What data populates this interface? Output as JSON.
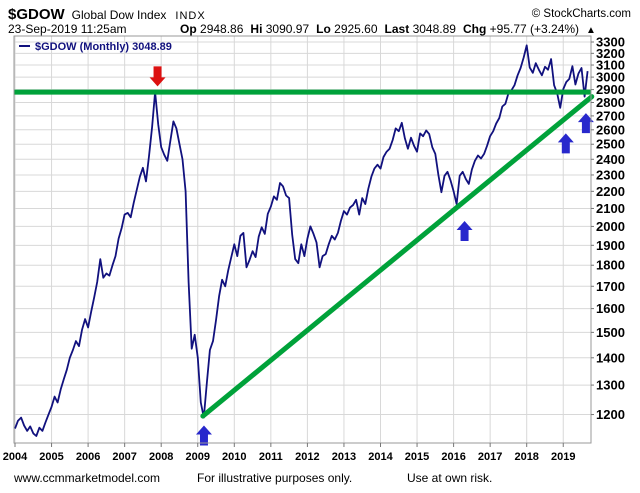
{
  "header": {
    "symbol": "$GDOW",
    "name": "Global Dow Index",
    "exchange": "INDX",
    "copyright": "© StockCharts.com",
    "datetime": "23-Sep-2019 11:25am",
    "quote": {
      "open_label": "Op",
      "open": "2948.86",
      "high_label": "Hi",
      "high": "3090.97",
      "low_label": "Lo",
      "low": "2925.60",
      "last_label": "Last",
      "last": "3048.89",
      "chg_label": "Chg",
      "chg": "+95.77 (+3.24%)",
      "direction": "▲"
    }
  },
  "legend": {
    "label": "$GDOW (Monthly) 3048.89",
    "color": "#11117e"
  },
  "footer": {
    "left": "www.ccmmarketmodel.com",
    "center": "For illustrative purposes only.",
    "right": "Use at own risk."
  },
  "chart_data": {
    "type": "line",
    "title": "$GDOW Global Dow Index monthly line chart",
    "frequency": "monthly",
    "start": "2004-01",
    "end": "2019-09",
    "log_scale": true,
    "grid": true,
    "x_range": [
      2004.0,
      2019.78
    ],
    "y_range": [
      1110,
      3375
    ],
    "x_ticks": [
      2004,
      2005,
      2006,
      2007,
      2008,
      2009,
      2010,
      2011,
      2012,
      2013,
      2014,
      2015,
      2016,
      2017,
      2018,
      2019
    ],
    "y_ticks": [
      1200,
      1300,
      1400,
      1500,
      1600,
      1700,
      1800,
      1900,
      2000,
      2100,
      2200,
      2300,
      2400,
      2500,
      2600,
      2700,
      2800,
      2900,
      3000,
      3100,
      3200,
      3300
    ],
    "line_color": "#11117e",
    "series": [
      {
        "name": "$GDOW (Monthly)",
        "values": [
          1155,
          1180,
          1190,
          1165,
          1148,
          1162,
          1140,
          1132,
          1158,
          1148,
          1175,
          1200,
          1225,
          1260,
          1240,
          1285,
          1320,
          1355,
          1400,
          1430,
          1465,
          1445,
          1510,
          1555,
          1520,
          1585,
          1650,
          1720,
          1830,
          1740,
          1760,
          1750,
          1800,
          1845,
          1935,
          1990,
          2065,
          2075,
          2050,
          2135,
          2210,
          2290,
          2345,
          2260,
          2420,
          2620,
          2880,
          2640,
          2480,
          2430,
          2390,
          2520,
          2660,
          2610,
          2500,
          2400,
          2200,
          1720,
          1435,
          1490,
          1400,
          1240,
          1190,
          1310,
          1430,
          1465,
          1550,
          1655,
          1730,
          1700,
          1775,
          1840,
          1905,
          1845,
          1950,
          1965,
          1790,
          1825,
          1870,
          1840,
          1945,
          1995,
          1960,
          2070,
          2110,
          2170,
          2150,
          2250,
          2230,
          2175,
          2160,
          1955,
          1830,
          1810,
          1905,
          1845,
          1935,
          2000,
          1960,
          1915,
          1790,
          1845,
          1855,
          1905,
          1950,
          1930,
          1965,
          2030,
          2085,
          2065,
          2105,
          2120,
          2150,
          2065,
          2160,
          2125,
          2215,
          2290,
          2340,
          2365,
          2340,
          2415,
          2450,
          2470,
          2530,
          2610,
          2590,
          2650,
          2540,
          2470,
          2545,
          2490,
          2450,
          2575,
          2555,
          2595,
          2570,
          2480,
          2435,
          2300,
          2195,
          2295,
          2320,
          2265,
          2200,
          2125,
          2295,
          2320,
          2275,
          2245,
          2335,
          2390,
          2425,
          2405,
          2435,
          2490,
          2555,
          2590,
          2645,
          2685,
          2770,
          2790,
          2870,
          2895,
          2935,
          3015,
          3075,
          3165,
          3270,
          3080,
          3035,
          3115,
          3060,
          3015,
          3085,
          3060,
          3150,
          2935,
          2870,
          2760,
          2905,
          2960,
          2985,
          3090,
          2940,
          3030,
          3075,
          2845,
          3049
        ]
      }
    ],
    "annotations": {
      "resistance_line": {
        "value": 2880,
        "color": "#00a23a"
      },
      "trendline": {
        "from": {
          "year": 2009.14,
          "value": 1195
        },
        "to": {
          "year": 2019.78,
          "value": 2845
        },
        "color": "#00a23a"
      },
      "arrows": [
        {
          "name": "red-down-arrow-2007-top",
          "year": 2007.9,
          "tip_value": 2925,
          "direction": "down",
          "color": "#dd1111"
        },
        {
          "name": "blue-up-arrow-2009-low",
          "year": 2009.17,
          "tip_value": 1165,
          "direction": "up",
          "color": "#2828cc"
        },
        {
          "name": "blue-up-arrow-2016-low",
          "year": 2016.3,
          "tip_value": 2030,
          "direction": "up",
          "color": "#2828cc"
        },
        {
          "name": "blue-up-arrow-2018-low",
          "year": 2019.07,
          "tip_value": 2575,
          "direction": "up",
          "color": "#2828cc"
        },
        {
          "name": "blue-up-arrow-2019-low",
          "year": 2019.62,
          "tip_value": 2720,
          "direction": "up",
          "color": "#2828cc"
        }
      ]
    }
  }
}
